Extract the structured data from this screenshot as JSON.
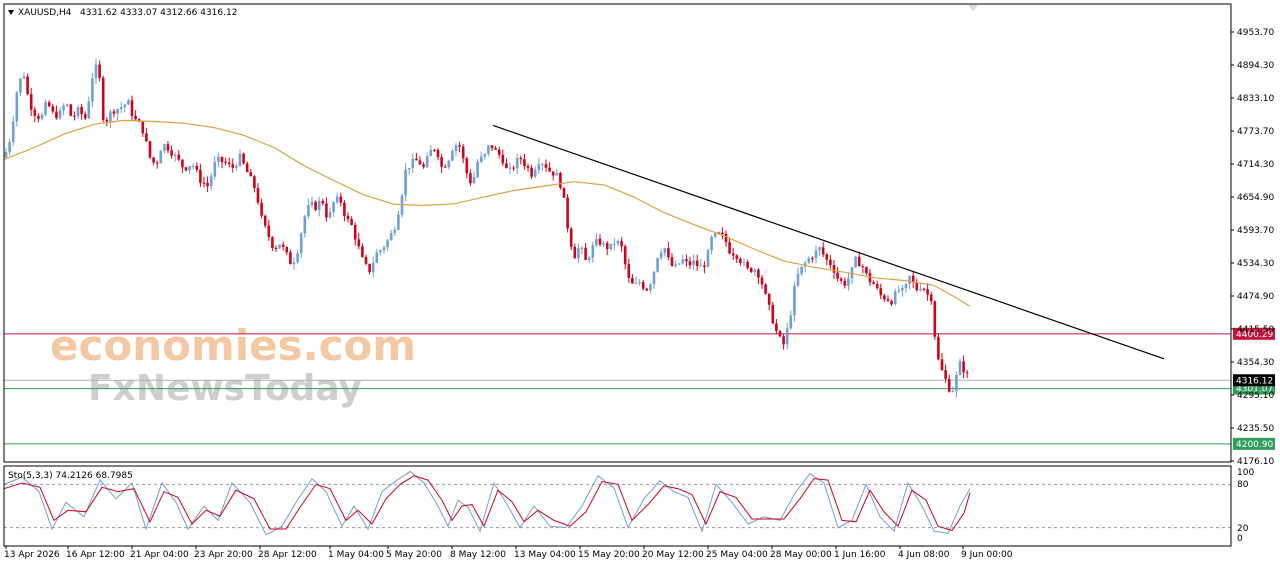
{
  "header": {
    "symbol": "XAUUSD,H4",
    "quote": "4331.62 4333.07 4312.66 4316.12"
  },
  "watermark": {
    "line1": "economies.com",
    "line2": "FxNewsToday"
  },
  "colors": {
    "bull": "#6f9fd8",
    "bear": "#d0021b",
    "ma": "#e0a040",
    "trendline": "#000000",
    "resistance": "#c8143c",
    "support": "#2e9e5a",
    "current_line": "#b0b0b0",
    "stoch_main": "#6f9fd8",
    "stoch_signal": "#d0021b",
    "watermark_orange": "#f3c9a3",
    "watermark_gray": "#cfcfcf"
  },
  "chart_data": [
    {
      "type": "candlestick",
      "symbol": "XAUUSD",
      "timeframe": "H4",
      "ohlc_last": {
        "open": 4331.62,
        "high": 4333.07,
        "low": 4312.66,
        "close": 4316.12
      },
      "ylim": [
        4168,
        4998
      ],
      "y_ticks": [
        "4953.70",
        "4894.30",
        "4833.10",
        "4773.70",
        "4714.30",
        "4654.90",
        "4593.70",
        "4534.30",
        "4474.90",
        "4415.50",
        "4354.30",
        "4295.10",
        "4235.50",
        "4176.10"
      ],
      "x_ticks": [
        "13 Apr 2026",
        "16 Apr 12:00",
        "21 Apr 04:00",
        "23 Apr 20:00",
        "28 Apr 12:00",
        "1 May 04:00",
        "5 May 20:00",
        "8 May 12:00",
        "13 May 04:00",
        "15 May 20:00",
        "20 May 12:00",
        "25 May 04:00",
        "28 May 00:00",
        "1 Jun 16:00",
        "4 Jun 08:00",
        "9 Jun 00:00"
      ],
      "price_path": [
        [
          0,
          4720
        ],
        [
          5,
          4745
        ],
        [
          10,
          4800
        ],
        [
          14,
          4855
        ],
        [
          20,
          4870
        ],
        [
          25,
          4820
        ],
        [
          31,
          4800
        ],
        [
          37,
          4790
        ],
        [
          43,
          4820
        ],
        [
          50,
          4795
        ],
        [
          56,
          4800
        ],
        [
          62,
          4820
        ],
        [
          68,
          4790
        ],
        [
          74,
          4805
        ],
        [
          82,
          4790
        ],
        [
          88,
          4865
        ],
        [
          94,
          4890
        ],
        [
          100,
          4780
        ],
        [
          108,
          4805
        ],
        [
          116,
          4810
        ],
        [
          124,
          4820
        ],
        [
          130,
          4790
        ],
        [
          138,
          4775
        ],
        [
          146,
          4720
        ],
        [
          152,
          4705
        ],
        [
          158,
          4745
        ],
        [
          164,
          4738
        ],
        [
          172,
          4720
        ],
        [
          180,
          4700
        ],
        [
          188,
          4710
        ],
        [
          196,
          4680
        ],
        [
          204,
          4668
        ],
        [
          212,
          4715
        ],
        [
          220,
          4712
        ],
        [
          228,
          4700
        ],
        [
          236,
          4720
        ],
        [
          244,
          4690
        ],
        [
          252,
          4660
        ],
        [
          258,
          4605
        ],
        [
          264,
          4580
        ],
        [
          270,
          4555
        ],
        [
          276,
          4565
        ],
        [
          282,
          4545
        ],
        [
          288,
          4525
        ],
        [
          294,
          4555
        ],
        [
          300,
          4610
        ],
        [
          306,
          4635
        ],
        [
          312,
          4630
        ],
        [
          318,
          4645
        ],
        [
          324,
          4605
        ],
        [
          330,
          4640
        ],
        [
          336,
          4645
        ],
        [
          342,
          4610
        ],
        [
          348,
          4595
        ],
        [
          354,
          4560
        ],
        [
          360,
          4525
        ],
        [
          366,
          4515
        ],
        [
          372,
          4545
        ],
        [
          378,
          4555
        ],
        [
          384,
          4570
        ],
        [
          390,
          4590
        ],
        [
          396,
          4635
        ],
        [
          402,
          4700
        ],
        [
          408,
          4710
        ],
        [
          414,
          4715
        ],
        [
          420,
          4700
        ],
        [
          426,
          4730
        ],
        [
          432,
          4740
        ],
        [
          438,
          4700
        ],
        [
          444,
          4715
        ],
        [
          450,
          4745
        ],
        [
          456,
          4740
        ],
        [
          462,
          4695
        ],
        [
          468,
          4670
        ],
        [
          474,
          4715
        ],
        [
          480,
          4720
        ],
        [
          486,
          4745
        ],
        [
          492,
          4730
        ],
        [
          498,
          4720
        ],
        [
          504,
          4690
        ],
        [
          510,
          4705
        ],
        [
          516,
          4720
        ],
        [
          522,
          4705
        ],
        [
          528,
          4690
        ],
        [
          534,
          4715
        ],
        [
          540,
          4710
        ],
        [
          546,
          4695
        ],
        [
          552,
          4690
        ],
        [
          558,
          4665
        ],
        [
          564,
          4590
        ],
        [
          570,
          4540
        ],
        [
          576,
          4560
        ],
        [
          582,
          4530
        ],
        [
          588,
          4555
        ],
        [
          594,
          4570
        ],
        [
          600,
          4560
        ],
        [
          606,
          4555
        ],
        [
          612,
          4570
        ],
        [
          618,
          4555
        ],
        [
          624,
          4500
        ],
        [
          630,
          4485
        ],
        [
          636,
          4495
        ],
        [
          642,
          4480
        ],
        [
          648,
          4500
        ],
        [
          654,
          4545
        ],
        [
          660,
          4560
        ],
        [
          666,
          4525
        ],
        [
          672,
          4520
        ],
        [
          678,
          4535
        ],
        [
          684,
          4525
        ],
        [
          690,
          4530
        ],
        [
          696,
          4520
        ],
        [
          702,
          4530
        ],
        [
          708,
          4575
        ],
        [
          714,
          4580
        ],
        [
          720,
          4575
        ],
        [
          726,
          4550
        ],
        [
          732,
          4545
        ],
        [
          738,
          4530
        ],
        [
          744,
          4515
        ],
        [
          750,
          4520
        ],
        [
          756,
          4505
        ],
        [
          762,
          4465
        ],
        [
          768,
          4430
        ],
        [
          774,
          4395
        ],
        [
          780,
          4380
        ],
        [
          786,
          4430
        ],
        [
          792,
          4500
        ],
        [
          798,
          4520
        ],
        [
          804,
          4535
        ],
        [
          810,
          4545
        ],
        [
          816,
          4555
        ],
        [
          822,
          4535
        ],
        [
          828,
          4525
        ],
        [
          834,
          4500
        ],
        [
          840,
          4490
        ],
        [
          846,
          4505
        ],
        [
          852,
          4535
        ],
        [
          858,
          4525
        ],
        [
          864,
          4500
        ],
        [
          870,
          4490
        ],
        [
          876,
          4470
        ],
        [
          882,
          4465
        ],
        [
          888,
          4460
        ],
        [
          894,
          4480
        ],
        [
          900,
          4475
        ],
        [
          906,
          4505
        ],
        [
          912,
          4480
        ],
        [
          918,
          4490
        ],
        [
          924,
          4470
        ],
        [
          928,
          4465
        ],
        [
          932,
          4370
        ],
        [
          936,
          4340
        ],
        [
          940,
          4325
        ],
        [
          944,
          4305
        ],
        [
          948,
          4295
        ],
        [
          952,
          4320
        ],
        [
          956,
          4345
        ],
        [
          960,
          4335
        ],
        [
          966,
          4316
        ]
      ],
      "moving_average": [
        [
          0,
          4716
        ],
        [
          30,
          4738
        ],
        [
          60,
          4762
        ],
        [
          90,
          4780
        ],
        [
          120,
          4787
        ],
        [
          150,
          4785
        ],
        [
          180,
          4782
        ],
        [
          210,
          4774
        ],
        [
          240,
          4760
        ],
        [
          270,
          4738
        ],
        [
          300,
          4705
        ],
        [
          330,
          4678
        ],
        [
          360,
          4652
        ],
        [
          390,
          4635
        ],
        [
          420,
          4633
        ],
        [
          450,
          4636
        ],
        [
          480,
          4648
        ],
        [
          510,
          4660
        ],
        [
          540,
          4668
        ],
        [
          570,
          4676
        ],
        [
          600,
          4670
        ],
        [
          630,
          4648
        ],
        [
          660,
          4620
        ],
        [
          690,
          4598
        ],
        [
          720,
          4578
        ],
        [
          750,
          4554
        ],
        [
          780,
          4532
        ],
        [
          810,
          4521
        ],
        [
          840,
          4512
        ],
        [
          870,
          4502
        ],
        [
          900,
          4497
        ],
        [
          930,
          4488
        ],
        [
          948,
          4470
        ],
        [
          966,
          4450
        ]
      ],
      "trendline": {
        "from": [
          489,
          4778
        ],
        "to": [
          1160,
          4355
        ]
      },
      "levels": [
        {
          "value": 4400.29,
          "label": "4400.29",
          "kind": "resistance"
        },
        {
          "value": 4301.07,
          "label": "4301.07",
          "kind": "support"
        },
        {
          "value": 4200.9,
          "label": "4200.90",
          "kind": "support"
        },
        {
          "value": 4316.12,
          "label": "4316.12",
          "kind": "current"
        }
      ]
    },
    {
      "type": "line",
      "indicator": "Stochastic",
      "label": "Sto(5,3,3) 74.2126 68.7985",
      "ylim": [
        0,
        100
      ],
      "levels": [
        20,
        80
      ],
      "y_ticks": [
        "100",
        "80",
        "20",
        "0"
      ],
      "main": [
        [
          0,
          80
        ],
        [
          18,
          90
        ],
        [
          35,
          70
        ],
        [
          48,
          18
        ],
        [
          62,
          55
        ],
        [
          80,
          35
        ],
        [
          96,
          86
        ],
        [
          112,
          60
        ],
        [
          128,
          82
        ],
        [
          142,
          18
        ],
        [
          158,
          82
        ],
        [
          172,
          55
        ],
        [
          184,
          18
        ],
        [
          200,
          50
        ],
        [
          214,
          30
        ],
        [
          228,
          82
        ],
        [
          246,
          55
        ],
        [
          262,
          10
        ],
        [
          278,
          22
        ],
        [
          292,
          55
        ],
        [
          308,
          88
        ],
        [
          322,
          70
        ],
        [
          338,
          22
        ],
        [
          350,
          50
        ],
        [
          364,
          18
        ],
        [
          378,
          70
        ],
        [
          392,
          85
        ],
        [
          406,
          98
        ],
        [
          420,
          82
        ],
        [
          434,
          50
        ],
        [
          444,
          22
        ],
        [
          454,
          58
        ],
        [
          464,
          48
        ],
        [
          476,
          15
        ],
        [
          490,
          82
        ],
        [
          504,
          50
        ],
        [
          516,
          20
        ],
        [
          530,
          50
        ],
        [
          546,
          22
        ],
        [
          562,
          20
        ],
        [
          578,
          50
        ],
        [
          594,
          92
        ],
        [
          610,
          75
        ],
        [
          624,
          20
        ],
        [
          640,
          60
        ],
        [
          656,
          85
        ],
        [
          670,
          70
        ],
        [
          684,
          62
        ],
        [
          698,
          15
        ],
        [
          712,
          80
        ],
        [
          728,
          55
        ],
        [
          744,
          25
        ],
        [
          760,
          35
        ],
        [
          776,
          30
        ],
        [
          792,
          70
        ],
        [
          806,
          95
        ],
        [
          820,
          82
        ],
        [
          834,
          20
        ],
        [
          848,
          30
        ],
        [
          862,
          80
        ],
        [
          876,
          35
        ],
        [
          890,
          15
        ],
        [
          904,
          82
        ],
        [
          918,
          50
        ],
        [
          930,
          15
        ],
        [
          944,
          12
        ],
        [
          956,
          50
        ],
        [
          966,
          74.2
        ]
      ],
      "signal": [
        [
          0,
          74
        ],
        [
          18,
          82
        ],
        [
          36,
          76
        ],
        [
          50,
          30
        ],
        [
          64,
          44
        ],
        [
          82,
          42
        ],
        [
          98,
          76
        ],
        [
          114,
          70
        ],
        [
          130,
          74
        ],
        [
          146,
          28
        ],
        [
          160,
          70
        ],
        [
          174,
          62
        ],
        [
          188,
          25
        ],
        [
          202,
          44
        ],
        [
          216,
          36
        ],
        [
          232,
          72
        ],
        [
          250,
          60
        ],
        [
          266,
          18
        ],
        [
          282,
          18
        ],
        [
          296,
          48
        ],
        [
          312,
          80
        ],
        [
          326,
          74
        ],
        [
          342,
          30
        ],
        [
          354,
          44
        ],
        [
          368,
          25
        ],
        [
          382,
          60
        ],
        [
          396,
          80
        ],
        [
          410,
          92
        ],
        [
          424,
          86
        ],
        [
          438,
          58
        ],
        [
          448,
          30
        ],
        [
          458,
          50
        ],
        [
          468,
          52
        ],
        [
          480,
          22
        ],
        [
          494,
          72
        ],
        [
          508,
          56
        ],
        [
          520,
          28
        ],
        [
          534,
          44
        ],
        [
          550,
          30
        ],
        [
          566,
          22
        ],
        [
          582,
          42
        ],
        [
          598,
          84
        ],
        [
          614,
          80
        ],
        [
          628,
          30
        ],
        [
          644,
          52
        ],
        [
          660,
          78
        ],
        [
          674,
          74
        ],
        [
          688,
          66
        ],
        [
          702,
          25
        ],
        [
          716,
          70
        ],
        [
          732,
          62
        ],
        [
          748,
          32
        ],
        [
          764,
          32
        ],
        [
          780,
          32
        ],
        [
          796,
          60
        ],
        [
          810,
          88
        ],
        [
          824,
          86
        ],
        [
          838,
          30
        ],
        [
          852,
          28
        ],
        [
          866,
          72
        ],
        [
          880,
          42
        ],
        [
          894,
          22
        ],
        [
          908,
          72
        ],
        [
          922,
          58
        ],
        [
          934,
          22
        ],
        [
          948,
          16
        ],
        [
          960,
          40
        ],
        [
          966,
          68.8
        ]
      ]
    }
  ]
}
